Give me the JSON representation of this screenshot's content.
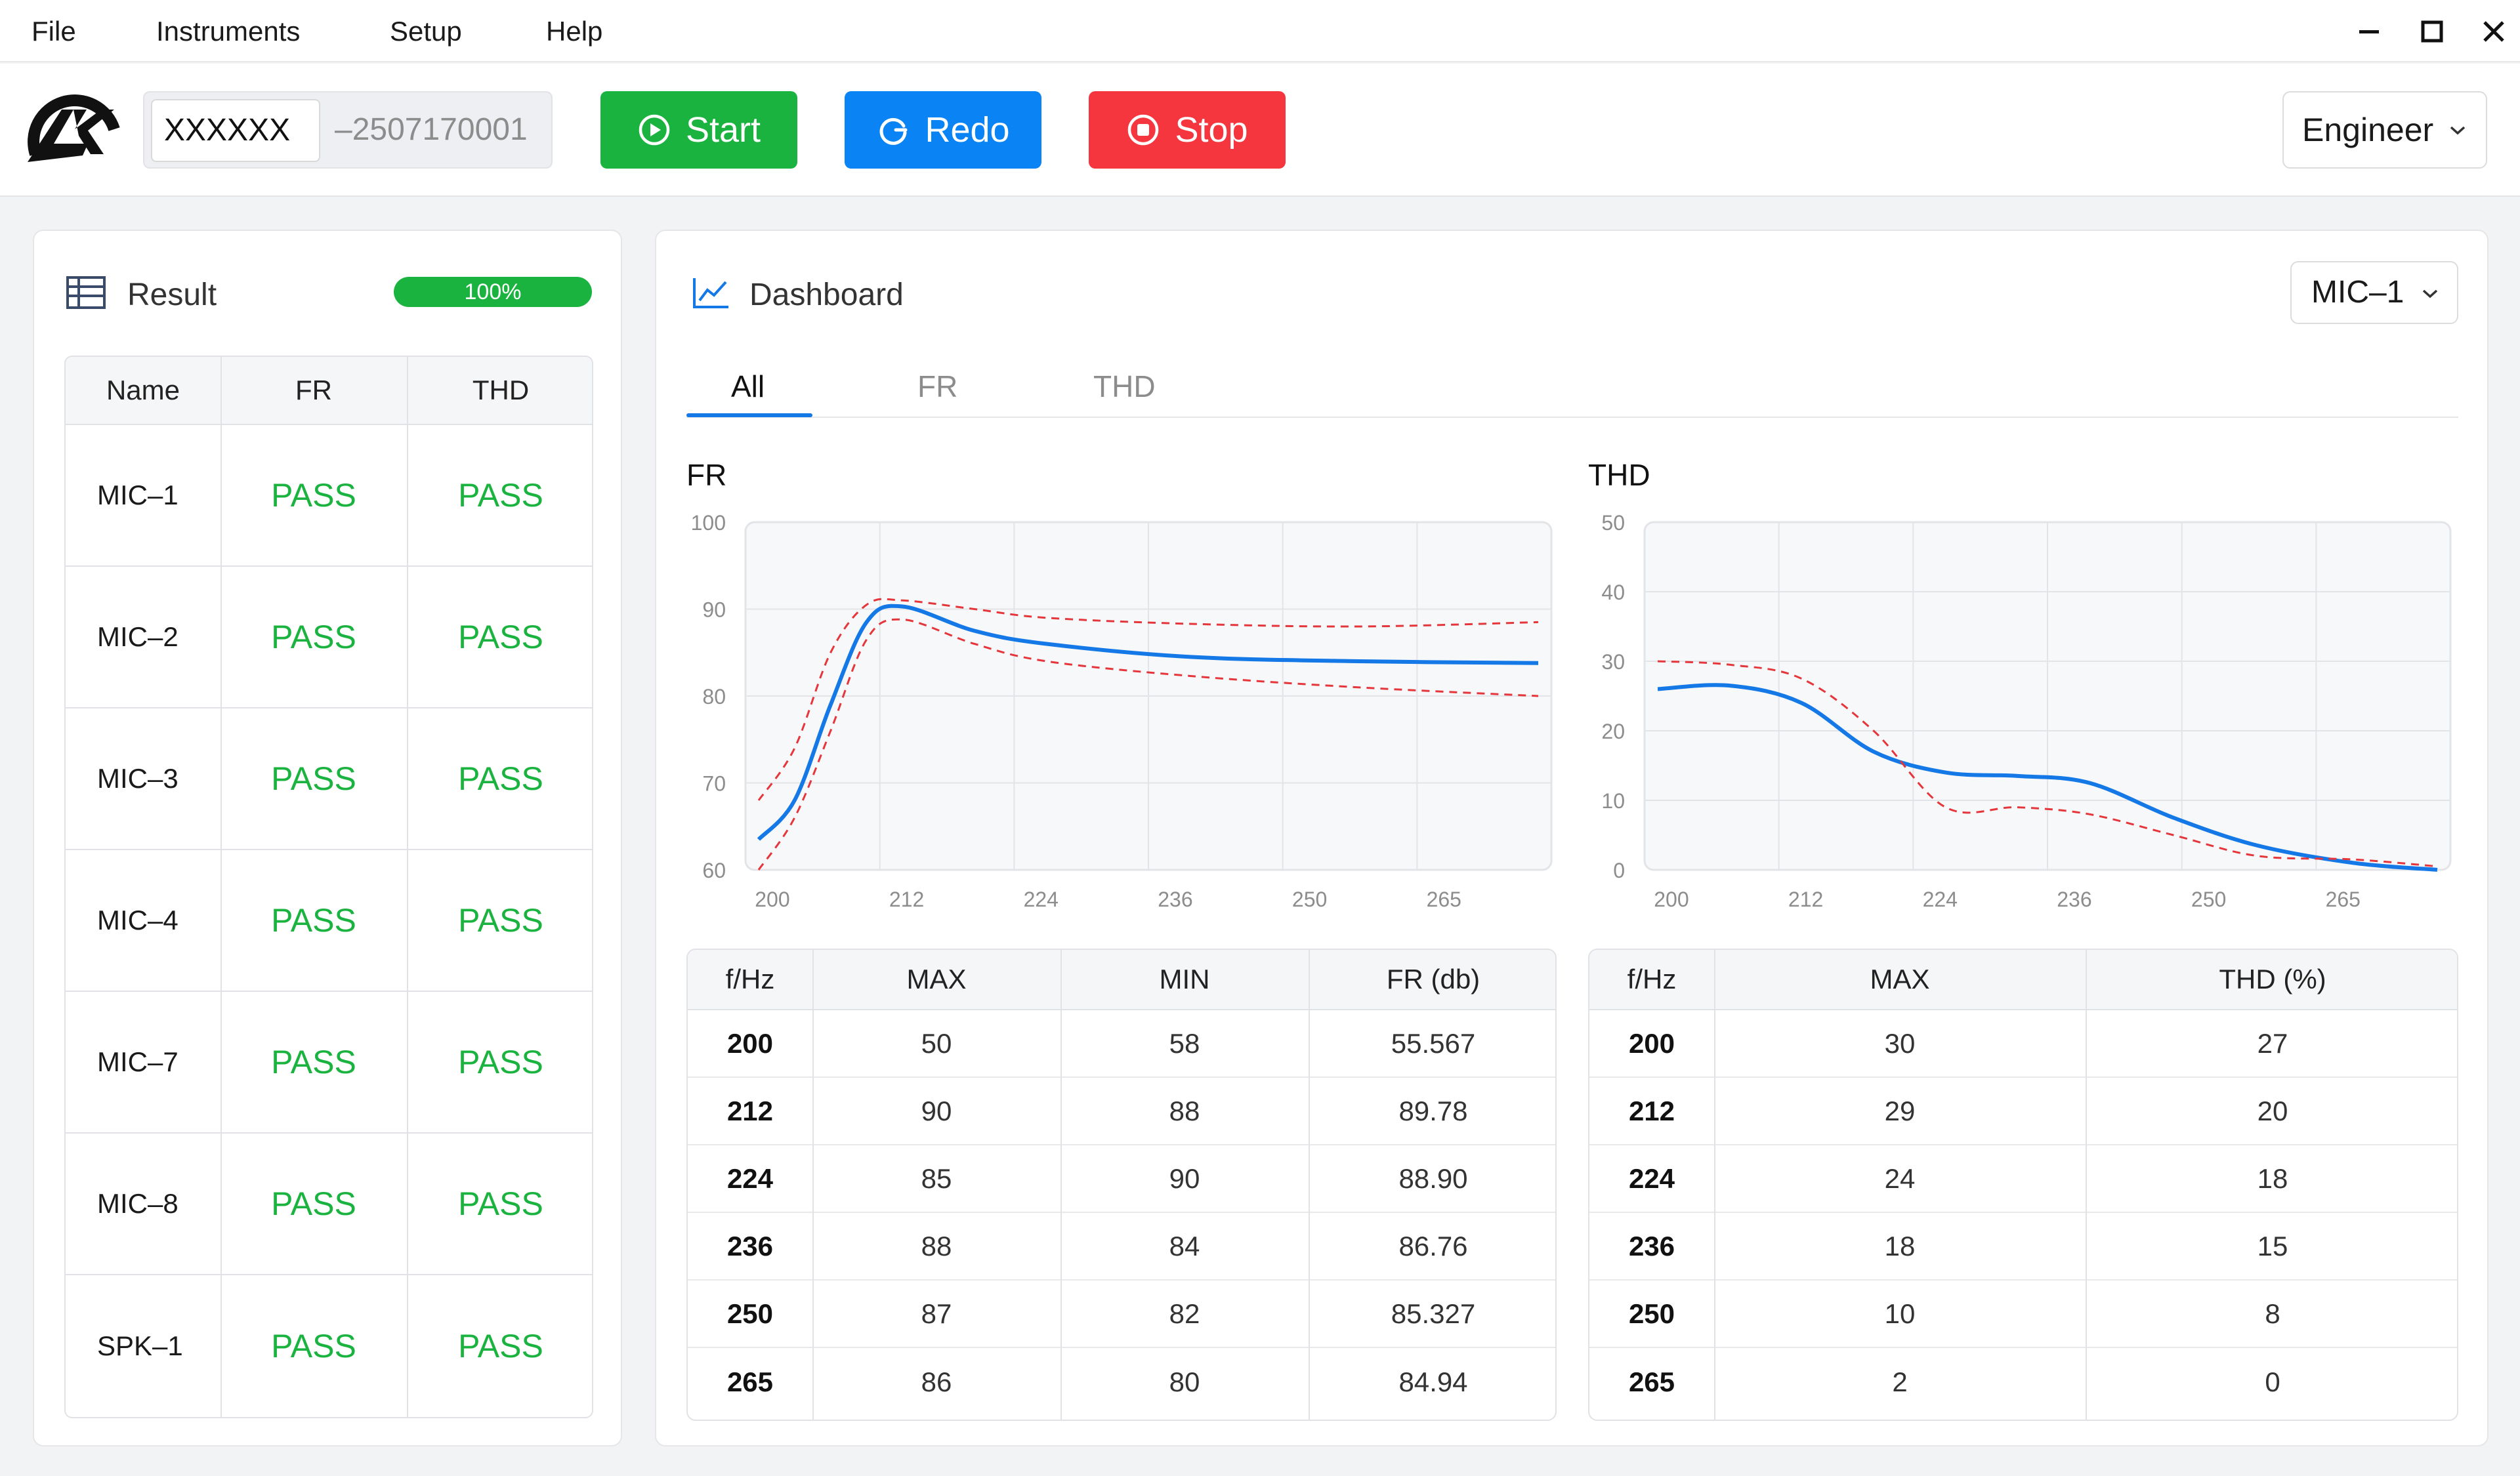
{
  "menu": [
    "File",
    "Instruments",
    "Setup",
    "Help"
  ],
  "toolbar": {
    "serial_prefix": "XXXXXX",
    "serial_suffix": "–2507170001",
    "start_label": "Start",
    "redo_label": "Redo",
    "stop_label": "Stop",
    "role": "Engineer"
  },
  "colors": {
    "start": "#1bb33f",
    "redo": "#0a84f5",
    "stop": "#f5363f",
    "pass": "#1bb33f",
    "series": "#1478e6",
    "limit": "#e5363b"
  },
  "result": {
    "title": "Result",
    "progress": "100%",
    "columns": [
      "Name",
      "FR",
      "THD"
    ],
    "rows": [
      [
        "MIC–1",
        "PASS",
        "PASS"
      ],
      [
        "MIC–2",
        "PASS",
        "PASS"
      ],
      [
        "MIC–3",
        "PASS",
        "PASS"
      ],
      [
        "MIC–4",
        "PASS",
        "PASS"
      ],
      [
        "MIC–7",
        "PASS",
        "PASS"
      ],
      [
        "MIC–8",
        "PASS",
        "PASS"
      ],
      [
        "SPK–1",
        "PASS",
        "PASS"
      ]
    ]
  },
  "dashboard": {
    "title": "Dashboard",
    "device": "MIC–1",
    "tabs": [
      "All",
      "FR",
      "THD"
    ],
    "active_tab": "All"
  },
  "chart_data": [
    {
      "type": "line",
      "title": "FR",
      "x_ticks": [
        "200",
        "212",
        "224",
        "236",
        "250",
        "265"
      ],
      "y_ticks": [
        60,
        70,
        80,
        90,
        100
      ],
      "ylim": [
        60,
        100
      ],
      "grid": true,
      "x": [
        200,
        203,
        206,
        209,
        212,
        218,
        224,
        236,
        250,
        265
      ],
      "series": [
        {
          "values": [
            63.5,
            68,
            79,
            88.5,
            90.3,
            87.5,
            86,
            84.5,
            84,
            83.8
          ]
        },
        {
          "values": [
            68,
            74,
            85,
            90.5,
            91,
            90,
            89,
            88.3,
            88,
            88.5
          ]
        },
        {
          "values": [
            60,
            66,
            76,
            86.5,
            88.8,
            86,
            84,
            82.3,
            81,
            80
          ]
        }
      ]
    },
    {
      "type": "line",
      "title": "THD",
      "x_ticks": [
        "200",
        "212",
        "224",
        "236",
        "250",
        "265"
      ],
      "y_ticks": [
        0,
        10,
        20,
        30,
        40,
        50
      ],
      "ylim": [
        0,
        50
      ],
      "grid": true,
      "x": [
        200,
        206,
        212,
        218,
        224,
        230,
        236,
        243,
        250,
        258,
        265
      ],
      "series": [
        {
          "values": [
            26,
            26.5,
            24,
            17,
            14,
            13.5,
            12.5,
            7.5,
            3.5,
            1,
            0
          ]
        },
        {
          "values": [
            30,
            29.5,
            27.5,
            20,
            9,
            9,
            8,
            5,
            2,
            1.5,
            0.5
          ]
        }
      ]
    }
  ],
  "fr_table": {
    "columns": [
      "f/Hz",
      "MAX",
      "MIN",
      "FR (db)"
    ],
    "rows": [
      [
        "200",
        "50",
        "58",
        "55.567"
      ],
      [
        "212",
        "90",
        "88",
        "89.78"
      ],
      [
        "224",
        "85",
        "90",
        "88.90"
      ],
      [
        "236",
        "88",
        "84",
        "86.76"
      ],
      [
        "250",
        "87",
        "82",
        "85.327"
      ],
      [
        "265",
        "86",
        "80",
        "84.94"
      ]
    ]
  },
  "thd_table": {
    "columns": [
      "f/Hz",
      "MAX",
      "THD (%)"
    ],
    "rows": [
      [
        "200",
        "30",
        "27"
      ],
      [
        "212",
        "29",
        "20"
      ],
      [
        "224",
        "24",
        "18"
      ],
      [
        "236",
        "18",
        "15"
      ],
      [
        "250",
        "10",
        "8"
      ],
      [
        "265",
        "2",
        "0"
      ]
    ]
  }
}
